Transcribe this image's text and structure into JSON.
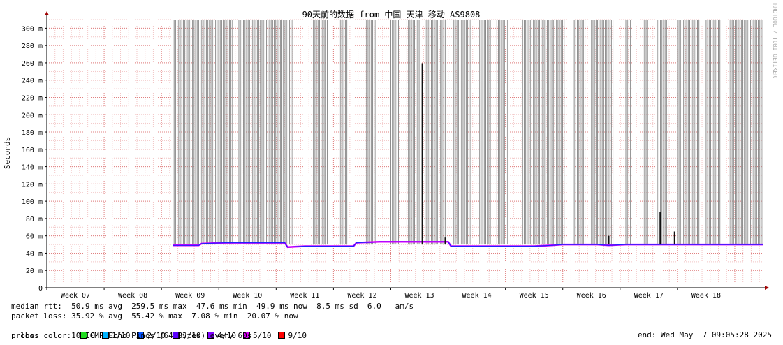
{
  "chart_data": {
    "type": "line",
    "title": "90天前的数据 from 中国 天津 移动 AS9808",
    "ylabel": "Seconds",
    "xlabel": "",
    "watermark": "RRDTOOL / TOBI OETIKER",
    "ylim": [
      0,
      310
    ],
    "yticks": [
      "0",
      "20 m",
      "40 m",
      "60 m",
      "80 m",
      "100 m",
      "120 m",
      "140 m",
      "160 m",
      "180 m",
      "200 m",
      "220 m",
      "240 m",
      "260 m",
      "280 m",
      "300 m"
    ],
    "xticks": [
      "Week 07",
      "Week 08",
      "Week 09",
      "Week 10",
      "Week 11",
      "Week 12",
      "Week 13",
      "Week 14",
      "Week 15",
      "Week 16",
      "Week 17",
      "Week 18"
    ],
    "grid": true,
    "data_start_week": 8.7,
    "series": [
      {
        "name": "median rtt",
        "color": "#2020ff",
        "x": [
          8.7,
          8.9,
          9.15,
          9.2,
          9.6,
          10.0,
          10.3,
          10.65,
          10.7,
          11.0,
          11.4,
          11.85,
          11.9,
          12.3,
          12.7,
          13.0,
          13.25,
          13.5,
          13.55,
          13.9,
          14.2,
          14.5,
          14.8,
          15.0,
          15.3,
          15.5,
          15.8,
          16.1,
          16.3,
          16.6,
          16.8,
          17.0,
          17.2,
          17.4,
          17.6,
          17.9,
          18.2,
          18.5,
          18.8,
          19.0
        ],
        "y": [
          49,
          49,
          49,
          51,
          52,
          52,
          52,
          52,
          47,
          48,
          48,
          48,
          52,
          53,
          53,
          53,
          53,
          53,
          48,
          48,
          48,
          48,
          48,
          48,
          49,
          50,
          50,
          50,
          49,
          50,
          50,
          50,
          50,
          50,
          50,
          50,
          50,
          50,
          50,
          50
        ]
      }
    ],
    "spikes": [
      {
        "x": 13.05,
        "y": 259.5
      },
      {
        "x": 17.2,
        "y": 88
      },
      {
        "x": 17.45,
        "y": 65
      },
      {
        "x": 16.3,
        "y": 60
      },
      {
        "x": 13.45,
        "y": 58
      }
    ],
    "loss_bands": [
      [
        8.72,
        9.75
      ],
      [
        9.85,
        10.8
      ],
      [
        11.15,
        11.4
      ],
      [
        11.6,
        11.75
      ],
      [
        12.05,
        12.25
      ],
      [
        12.5,
        12.65
      ],
      [
        12.78,
        13.0
      ],
      [
        13.1,
        13.45
      ],
      [
        13.6,
        13.9
      ],
      [
        14.05,
        14.25
      ],
      [
        14.35,
        14.55
      ],
      [
        14.8,
        15.55
      ],
      [
        15.7,
        15.9
      ],
      [
        16.0,
        16.4
      ],
      [
        16.6,
        16.7
      ],
      [
        16.9,
        17.0
      ],
      [
        17.15,
        17.35
      ],
      [
        17.5,
        17.9
      ],
      [
        18.0,
        18.25
      ],
      [
        18.4,
        19.0
      ]
    ],
    "loss_colors": [
      {
        "label": "0",
        "color": "#22dd22"
      },
      {
        "label": "1/10",
        "color": "#00b4ff"
      },
      {
        "label": "2/10",
        "color": "#0050ff"
      },
      {
        "label": "3/10",
        "color": "#5a00ff"
      },
      {
        "label": "4/10",
        "color": "#8000ff"
      },
      {
        "label": "5/10",
        "color": "#e000ff"
      },
      {
        "label": "9/10",
        "color": "#ff0000"
      }
    ]
  },
  "stats": {
    "median_rtt": "median rtt:  50.9 ms avg  259.5 ms max  47.6 ms min  49.9 ms now  8.5 ms sd  6.0   am/s",
    "packet_loss": "packet loss: 35.92 % avg  55.42 % max  7.08 % min  20.07 % now",
    "loss_color_label": "loss color:",
    "probe": "probe:       10 ICMP Echo Pings (64 Bytes) every 60s",
    "end": "end: Wed May  7 09:05:28 2025"
  }
}
